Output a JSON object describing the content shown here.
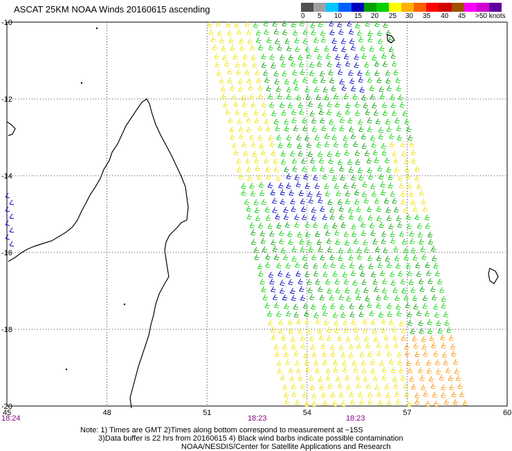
{
  "title": "ASCAT 25KM NOAA Winds 20160615 ascending",
  "legend": {
    "colors": [
      "#505050",
      "#a0a0a0",
      "#00c8ff",
      "#0060ff",
      "#0000c0",
      "#00a000",
      "#00d000",
      "#ffff00",
      "#ffb000",
      "#ff6000",
      "#ff0000",
      "#d00000",
      "#a05000",
      "#ff00ff",
      "#d000d0",
      "#6000a0"
    ],
    "labels": [
      "0",
      "5",
      "10",
      "15",
      "20",
      "25",
      "30",
      "35",
      "40",
      "45",
      ">50 knots"
    ]
  },
  "map": {
    "latitudes": [
      "-10",
      "-12",
      "-14",
      "-16",
      "-18",
      "-20"
    ],
    "longitudes": [
      "45",
      "48",
      "51",
      "54",
      "57",
      "60"
    ],
    "times": [
      "18:24",
      "18:23",
      "18:23"
    ]
  },
  "notes": {
    "line1": "Note: 1) Times are GMT 2)Times along bottom correspond to measurement at −15S",
    "line2": "3)Data buffer is 22 hrs from 20160615 4) Black wind barbs indicate possible contamination",
    "line3": "NOAA/NESDIS/Center for Satellite Applications and Research"
  },
  "colors": {
    "swath_yellow": "#f0e000",
    "swath_green_light": "#00d000",
    "swath_green_dark": "#00a000",
    "swath_blue": "#0000c0",
    "swath_orange": "#ff9000",
    "coast": "#000000"
  }
}
